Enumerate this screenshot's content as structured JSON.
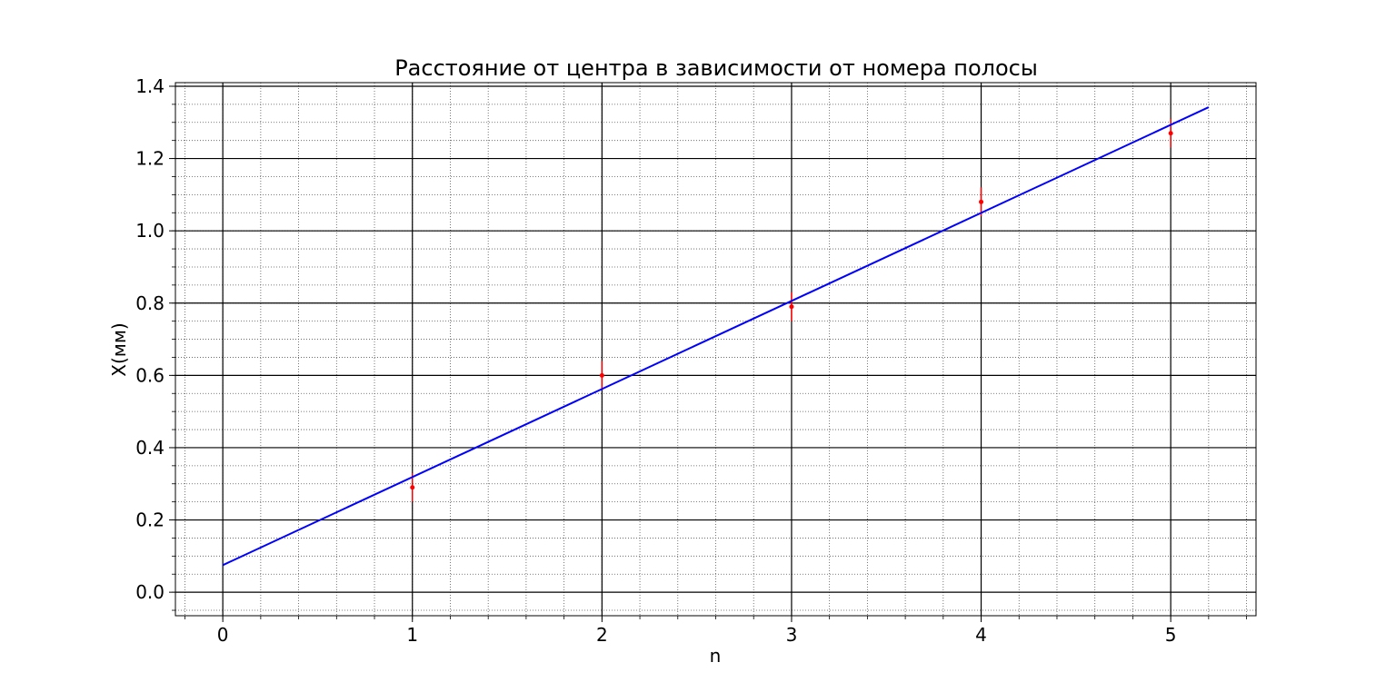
{
  "chart_data": {
    "type": "scatter",
    "title": "Расстояние от центра в зависимости от номера полосы",
    "xlabel": "n",
    "ylabel": "X(мм)",
    "xlim": [
      -0.25,
      5.45
    ],
    "ylim": [
      -0.065,
      1.41
    ],
    "x_ticks": [
      0,
      1,
      2,
      3,
      4,
      5
    ],
    "x_tick_labels": [
      "0",
      "1",
      "2",
      "3",
      "4",
      "5"
    ],
    "y_ticks": [
      0.0,
      0.2,
      0.4,
      0.6,
      0.8,
      1.0,
      1.2,
      1.4
    ],
    "y_tick_labels": [
      "0.0",
      "0.2",
      "0.4",
      "0.6",
      "0.8",
      "1.0",
      "1.2",
      "1.4"
    ],
    "x_minor_step": 0.2,
    "y_minor_step": 0.05,
    "grid": {
      "major": true,
      "minor": true,
      "minor_style": "dotted"
    },
    "series": [
      {
        "kind": "errorbar",
        "color": "#ff0000",
        "x": [
          1,
          2,
          3,
          4,
          5
        ],
        "y": [
          0.29,
          0.6,
          0.79,
          1.08,
          1.27
        ],
        "yerr": [
          0.04,
          0.04,
          0.04,
          0.04,
          0.04
        ]
      },
      {
        "kind": "line",
        "color": "#0000ff",
        "x": [
          0,
          5.2
        ],
        "y": [
          0.075,
          1.342
        ]
      }
    ]
  }
}
